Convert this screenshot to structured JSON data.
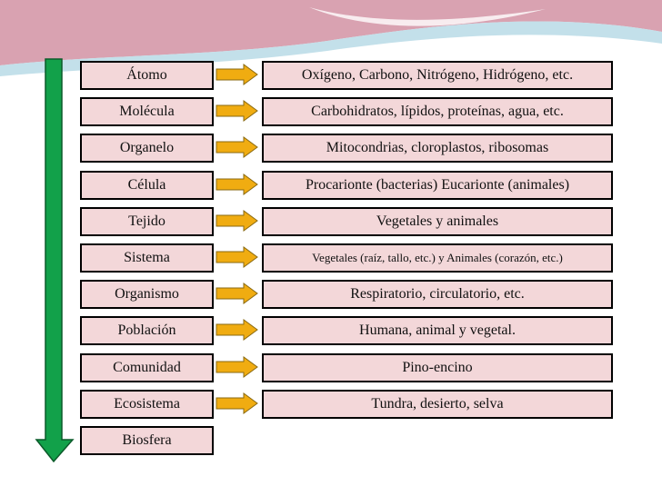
{
  "colors": {
    "box_fill": "#f3d7d9",
    "box_border": "#000000",
    "small_arrow": "#f0ac11",
    "big_arrow": "#12a14a",
    "banner_pink": "#d9a2b1",
    "banner_blue": "#b9dbe6"
  },
  "levels": [
    {
      "name": "Átomo",
      "example": "Oxígeno, Carbono, Nitrógeno, Hidrógeno, etc."
    },
    {
      "name": "Molécula",
      "example": "Carbohidratos, lípidos, proteínas, agua, etc."
    },
    {
      "name": "Organelo",
      "example": "Mitocondrias, cloroplastos, ribosomas"
    },
    {
      "name": "Célula",
      "example": "Procarionte (bacterias) Eucarionte (animales)"
    },
    {
      "name": "Tejido",
      "example": "Vegetales y animales"
    },
    {
      "name": "Sistema",
      "example": "Vegetales (raíz, tallo, etc.) y Animales (corazón, etc.)",
      "small": true
    },
    {
      "name": "Organismo",
      "example": "Respiratorio, circulatorio, etc."
    },
    {
      "name": "Población",
      "example": "Humana, animal y vegetal."
    },
    {
      "name": "Comunidad",
      "example": "Pino-encino"
    },
    {
      "name": "Ecosistema",
      "example": "Tundra, desierto, selva"
    },
    {
      "name": "Biosfera"
    }
  ]
}
